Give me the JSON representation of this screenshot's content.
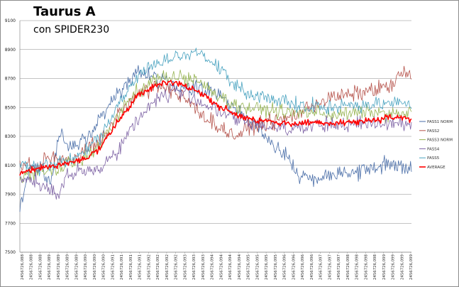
{
  "chart_data": {
    "type": "line",
    "title": "Taurus A",
    "subtitle": "con SPIDER230",
    "xlabel": "",
    "ylabel": "",
    "ylim": [
      7500,
      9100
    ],
    "yticks": [
      7500,
      7700,
      7900,
      8100,
      8300,
      8500,
      8700,
      8900,
      9100
    ],
    "grid": true,
    "legend_position": "right",
    "x_tick_labels": [
      "2456726,088",
      "2456726,088",
      "2456726,088",
      "2456726,089",
      "2456726,089",
      "2456726,089",
      "2456726,089",
      "2456726,090",
      "2456726,090",
      "2456726,090",
      "2456726,091",
      "2456726,091",
      "2456726,091",
      "2456726,091",
      "2456726,092",
      "2456726,092",
      "2456726,092",
      "2456726,092",
      "2456726,093",
      "2456726,093",
      "2456726,093",
      "2456726,094",
      "2456726,094",
      "2456726,094",
      "2456726,094",
      "2456726,095",
      "2456726,095",
      "2456726,095",
      "2456726,095",
      "2456726,096",
      "2456726,096",
      "2456726,096",
      "2456726,096",
      "2456726,097",
      "2456726,097",
      "2456726,097",
      "2456726,098",
      "2456726,098",
      "2456726,098",
      "2456726,098",
      "2456726,099",
      "2456726,099",
      "2456726,099",
      "2456726,099"
    ],
    "series": [
      {
        "name": "PASS1 NORM",
        "color": "#4a6ea8",
        "width": 0.8,
        "noise": 45,
        "anchors": [
          [
            0,
            7790
          ],
          [
            0.02,
            8020
          ],
          [
            0.05,
            8120
          ],
          [
            0.08,
            7980
          ],
          [
            0.1,
            8320
          ],
          [
            0.13,
            8220
          ],
          [
            0.17,
            8280
          ],
          [
            0.2,
            8410
          ],
          [
            0.25,
            8600
          ],
          [
            0.3,
            8750
          ],
          [
            0.35,
            8700
          ],
          [
            0.4,
            8640
          ],
          [
            0.44,
            8630
          ],
          [
            0.48,
            8620
          ],
          [
            0.52,
            8560
          ],
          [
            0.57,
            8450
          ],
          [
            0.63,
            8300
          ],
          [
            0.68,
            8180
          ],
          [
            0.71,
            8030
          ],
          [
            0.77,
            8010
          ],
          [
            0.81,
            8060
          ],
          [
            0.87,
            8060
          ],
          [
            0.93,
            8110
          ],
          [
            1.0,
            8080
          ]
        ]
      },
      {
        "name": "PASS2",
        "color": "#b5524a",
        "width": 0.8,
        "noise": 45,
        "anchors": [
          [
            0,
            8110
          ],
          [
            0.04,
            8080
          ],
          [
            0.08,
            8160
          ],
          [
            0.12,
            8140
          ],
          [
            0.16,
            8180
          ],
          [
            0.2,
            8250
          ],
          [
            0.25,
            8450
          ],
          [
            0.3,
            8600
          ],
          [
            0.35,
            8650
          ],
          [
            0.4,
            8610
          ],
          [
            0.45,
            8490
          ],
          [
            0.5,
            8380
          ],
          [
            0.55,
            8300
          ],
          [
            0.6,
            8380
          ],
          [
            0.65,
            8400
          ],
          [
            0.7,
            8440
          ],
          [
            0.75,
            8520
          ],
          [
            0.8,
            8570
          ],
          [
            0.85,
            8590
          ],
          [
            0.9,
            8620
          ],
          [
            0.95,
            8650
          ],
          [
            0.98,
            8750
          ],
          [
            1.0,
            8700
          ]
        ]
      },
      {
        "name": "PASS3 NORM",
        "color": "#95b350",
        "width": 0.8,
        "noise": 40,
        "anchors": [
          [
            0,
            8010
          ],
          [
            0.04,
            8050
          ],
          [
            0.1,
            8090
          ],
          [
            0.15,
            8130
          ],
          [
            0.2,
            8220
          ],
          [
            0.25,
            8450
          ],
          [
            0.3,
            8620
          ],
          [
            0.35,
            8700
          ],
          [
            0.4,
            8710
          ],
          [
            0.45,
            8690
          ],
          [
            0.5,
            8600
          ],
          [
            0.55,
            8510
          ],
          [
            0.6,
            8490
          ],
          [
            0.65,
            8480
          ],
          [
            0.7,
            8460
          ],
          [
            0.75,
            8470
          ],
          [
            0.8,
            8450
          ],
          [
            0.85,
            8460
          ],
          [
            0.9,
            8470
          ],
          [
            0.95,
            8450
          ],
          [
            1.0,
            8460
          ]
        ]
      },
      {
        "name": "PASS4",
        "color": "#7d62a4",
        "width": 0.8,
        "noise": 45,
        "anchors": [
          [
            0,
            8000
          ],
          [
            0.04,
            7990
          ],
          [
            0.08,
            7940
          ],
          [
            0.1,
            7880
          ],
          [
            0.12,
            8030
          ],
          [
            0.16,
            8050
          ],
          [
            0.2,
            8080
          ],
          [
            0.25,
            8200
          ],
          [
            0.3,
            8420
          ],
          [
            0.35,
            8560
          ],
          [
            0.4,
            8620
          ],
          [
            0.45,
            8560
          ],
          [
            0.5,
            8480
          ],
          [
            0.55,
            8420
          ],
          [
            0.6,
            8380
          ],
          [
            0.65,
            8370
          ],
          [
            0.7,
            8360
          ],
          [
            0.75,
            8370
          ],
          [
            0.8,
            8380
          ],
          [
            0.85,
            8380
          ],
          [
            0.9,
            8390
          ],
          [
            0.95,
            8400
          ],
          [
            1.0,
            8380
          ]
        ]
      },
      {
        "name": "PASS5",
        "color": "#4aa3c0",
        "width": 0.8,
        "noise": 40,
        "anchors": [
          [
            0,
            8100
          ],
          [
            0.05,
            8090
          ],
          [
            0.1,
            8120
          ],
          [
            0.15,
            8160
          ],
          [
            0.2,
            8280
          ],
          [
            0.25,
            8500
          ],
          [
            0.3,
            8720
          ],
          [
            0.35,
            8800
          ],
          [
            0.4,
            8850
          ],
          [
            0.45,
            8880
          ],
          [
            0.5,
            8800
          ],
          [
            0.55,
            8650
          ],
          [
            0.6,
            8580
          ],
          [
            0.65,
            8560
          ],
          [
            0.7,
            8520
          ],
          [
            0.75,
            8510
          ],
          [
            0.8,
            8500
          ],
          [
            0.85,
            8520
          ],
          [
            0.9,
            8520
          ],
          [
            0.95,
            8530
          ],
          [
            1.0,
            8520
          ]
        ]
      },
      {
        "name": "AVERAGE",
        "color": "#ff0000",
        "width": 1.6,
        "noise": 18,
        "anchors": [
          [
            0,
            8040
          ],
          [
            0.04,
            8070
          ],
          [
            0.08,
            8090
          ],
          [
            0.12,
            8110
          ],
          [
            0.16,
            8140
          ],
          [
            0.2,
            8200
          ],
          [
            0.25,
            8400
          ],
          [
            0.3,
            8580
          ],
          [
            0.35,
            8650
          ],
          [
            0.38,
            8690
          ],
          [
            0.4,
            8670
          ],
          [
            0.45,
            8620
          ],
          [
            0.5,
            8520
          ],
          [
            0.55,
            8450
          ],
          [
            0.6,
            8410
          ],
          [
            0.65,
            8400
          ],
          [
            0.7,
            8390
          ],
          [
            0.75,
            8390
          ],
          [
            0.8,
            8390
          ],
          [
            0.85,
            8400
          ],
          [
            0.9,
            8410
          ],
          [
            0.95,
            8430
          ],
          [
            1.0,
            8420
          ]
        ]
      }
    ]
  }
}
